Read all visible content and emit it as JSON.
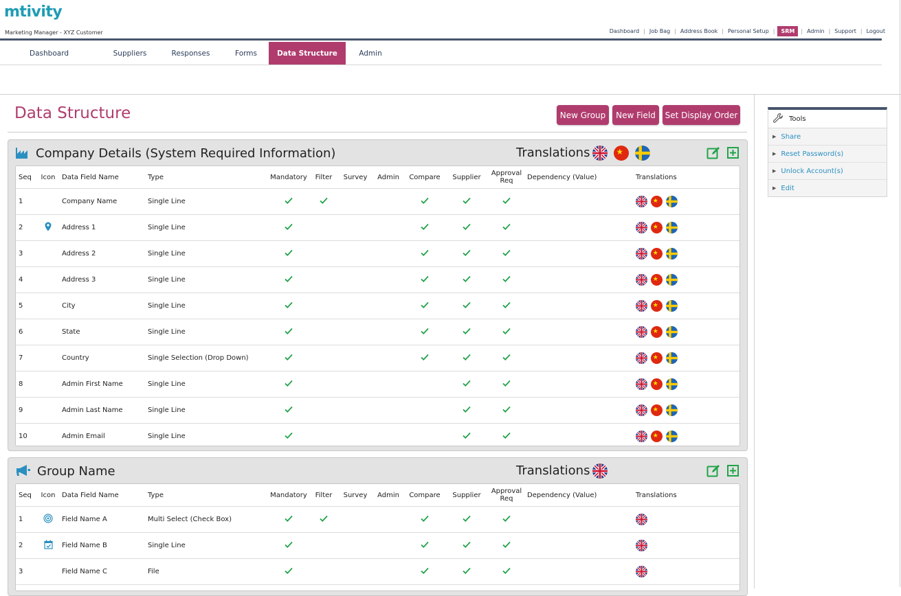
{
  "app": {
    "logo": "mtivity",
    "subtitle": "Marketing Manager - XYZ Customer"
  },
  "util_nav": {
    "items": [
      "Dashboard",
      "Job Bag",
      "Address Book",
      "Personal Setup",
      "SRM",
      "Admin",
      "Support",
      "Logout"
    ],
    "active": "SRM"
  },
  "tabs": {
    "items": [
      "Dashboard",
      "Suppliers",
      "Responses",
      "Forms",
      "Data Structure",
      "Admin"
    ],
    "active": "Data Structure"
  },
  "page": {
    "title": "Data Structure",
    "buttons": [
      "New Group",
      "New Field",
      "Set Display Order"
    ]
  },
  "columns": [
    "Seq",
    "Icon",
    "Data Field Name",
    "Type",
    "Mandatory",
    "Filter",
    "Survey",
    "Admin",
    "Compare",
    "Supplier",
    "Approval Req",
    "Dependency (Value)",
    "Translations"
  ],
  "colors": {
    "accent": "#b03c6e",
    "navbar": "#46556b",
    "check": "#21a34a",
    "link": "#2b8fc0",
    "icon_blue": "#2b8fc0",
    "icon_green": "#21a34a"
  },
  "groups": [
    {
      "title": "Company Details (System Required Information)",
      "icon": "building-icon",
      "translations_label": "Translations",
      "languages": [
        "uk-flag",
        "china-flag",
        "sweden-flag"
      ],
      "rows": [
        {
          "seq": "1",
          "icon": "",
          "name": "Company Name",
          "type": "Single Line",
          "mandatory": true,
          "filter": true,
          "survey": false,
          "admin": false,
          "compare": true,
          "supplier": true,
          "approval": true,
          "dependency": ""
        },
        {
          "seq": "2",
          "icon": "map-pin-icon",
          "name": "Address 1",
          "type": "Single Line",
          "mandatory": true,
          "filter": false,
          "survey": false,
          "admin": false,
          "compare": true,
          "supplier": true,
          "approval": true,
          "dependency": ""
        },
        {
          "seq": "3",
          "icon": "",
          "name": "Address 2",
          "type": "Single Line",
          "mandatory": true,
          "filter": false,
          "survey": false,
          "admin": false,
          "compare": true,
          "supplier": true,
          "approval": true,
          "dependency": ""
        },
        {
          "seq": "4",
          "icon": "",
          "name": "Address 3",
          "type": "Single Line",
          "mandatory": true,
          "filter": false,
          "survey": false,
          "admin": false,
          "compare": true,
          "supplier": true,
          "approval": true,
          "dependency": ""
        },
        {
          "seq": "5",
          "icon": "",
          "name": "City",
          "type": "Single Line",
          "mandatory": true,
          "filter": false,
          "survey": false,
          "admin": false,
          "compare": true,
          "supplier": true,
          "approval": true,
          "dependency": ""
        },
        {
          "seq": "6",
          "icon": "",
          "name": "State",
          "type": "Single Line",
          "mandatory": true,
          "filter": false,
          "survey": false,
          "admin": false,
          "compare": true,
          "supplier": true,
          "approval": true,
          "dependency": ""
        },
        {
          "seq": "7",
          "icon": "",
          "name": "Country",
          "type": "Single Selection (Drop Down)",
          "mandatory": true,
          "filter": false,
          "survey": false,
          "admin": false,
          "compare": true,
          "supplier": true,
          "approval": true,
          "dependency": ""
        },
        {
          "seq": "8",
          "icon": "",
          "name": "Admin First Name",
          "type": "Single Line",
          "mandatory": true,
          "filter": false,
          "survey": false,
          "admin": false,
          "compare": false,
          "supplier": true,
          "approval": true,
          "dependency": ""
        },
        {
          "seq": "9",
          "icon": "",
          "name": "Admin Last Name",
          "type": "Single Line",
          "mandatory": true,
          "filter": false,
          "survey": false,
          "admin": false,
          "compare": false,
          "supplier": true,
          "approval": true,
          "dependency": ""
        },
        {
          "seq": "10",
          "icon": "",
          "name": "Admin Email",
          "type": "Single Line",
          "mandatory": true,
          "filter": false,
          "survey": false,
          "admin": false,
          "compare": false,
          "supplier": true,
          "approval": true,
          "dependency": ""
        }
      ]
    },
    {
      "title": "Group Name",
      "icon": "megaphone-icon",
      "translations_label": "Translations",
      "languages": [
        "uk-flag"
      ],
      "rows": [
        {
          "seq": "1",
          "icon": "target-icon",
          "name": "Field Name A",
          "type": "Multi Select (Check Box)",
          "mandatory": true,
          "filter": true,
          "survey": false,
          "admin": false,
          "compare": true,
          "supplier": true,
          "approval": true,
          "dependency": ""
        },
        {
          "seq": "2",
          "icon": "calendar-check-icon",
          "name": "Field Name B",
          "type": "Single Line",
          "mandatory": true,
          "filter": false,
          "survey": false,
          "admin": false,
          "compare": true,
          "supplier": true,
          "approval": true,
          "dependency": ""
        },
        {
          "seq": "3",
          "icon": "",
          "name": "Field Name C",
          "type": "File",
          "mandatory": true,
          "filter": false,
          "survey": false,
          "admin": false,
          "compare": true,
          "supplier": true,
          "approval": true,
          "dependency": ""
        },
        {
          "seq": "",
          "icon": "",
          "name": "",
          "type": "",
          "mandatory": false,
          "filter": false,
          "survey": false,
          "admin": false,
          "compare": false,
          "supplier": false,
          "approval": false,
          "dependency": ""
        }
      ]
    }
  ],
  "tools": {
    "title": "Tools",
    "icon": "wrench-icon",
    "items": [
      "Share",
      "Reset Password(s)",
      "Unlock Account(s)",
      "Edit"
    ]
  }
}
